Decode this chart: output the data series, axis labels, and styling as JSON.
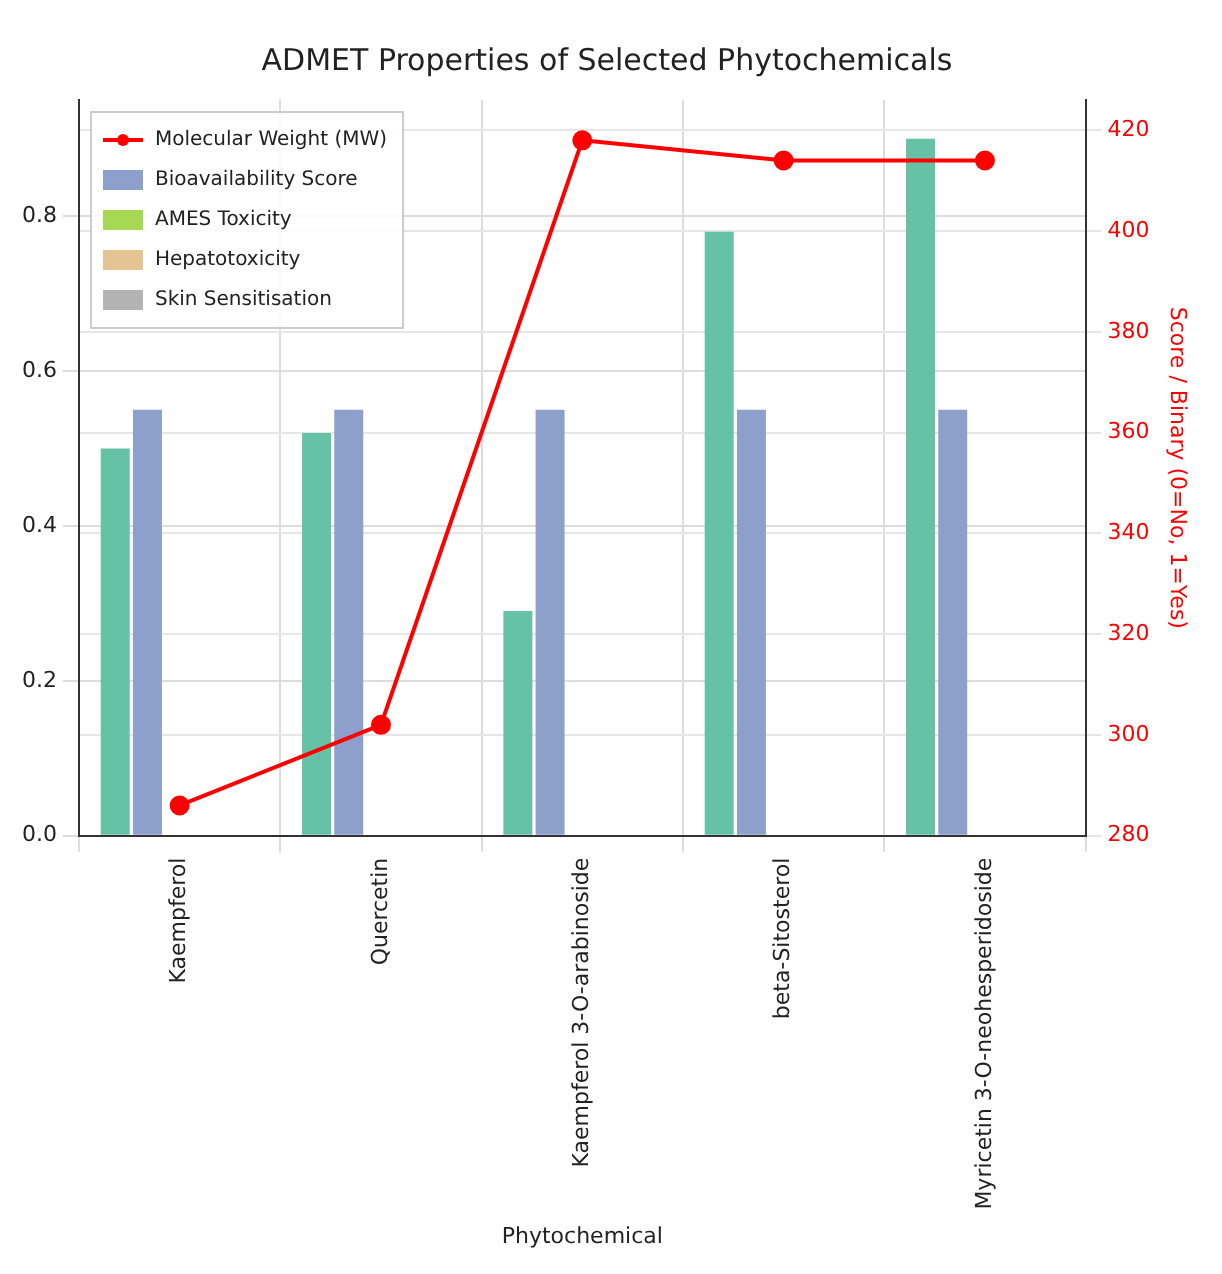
{
  "chart_data": {
    "type": "bar",
    "title": "ADMET Properties of Selected Phytochemicals",
    "xlabel": "Phytochemical",
    "y2label": "Score / Binary (0=No, 1=Yes)",
    "categories": [
      "Kaempferol",
      "Quercetin",
      "Kaempferol 3-O-arabinoside",
      "beta-Sitosterol",
      "Myricetin 3-O-neohesperidoside"
    ],
    "series": [
      {
        "name": "Molecular Weight (MW)",
        "type": "line",
        "axis": "y2",
        "color": "#ff0000",
        "values": [
          286,
          302,
          418,
          414,
          414
        ],
        "marker": "circle"
      },
      {
        "color": "#66c2a5",
        "values": [
          0.5,
          0.52,
          0.29,
          0.78,
          0.9
        ]
      },
      {
        "name": "Bioavailability Score",
        "color": "#8da0cb",
        "values": [
          0.55,
          0.55,
          0.55,
          0.55,
          0.55
        ]
      },
      {
        "name": "AMES Toxicity",
        "color": "#a6d854",
        "values": [
          0,
          0,
          0,
          0,
          0
        ]
      },
      {
        "name": "Hepatotoxicity",
        "color": "#e5c494",
        "values": [
          0,
          0,
          0,
          0,
          0
        ]
      },
      {
        "name": "Skin Sensitisation",
        "color": "#b3b3b3",
        "values": [
          0,
          0,
          0,
          0,
          0
        ]
      }
    ],
    "ylim": [
      0,
      0.95
    ],
    "yticks": [
      {
        "value": 0,
        "label": "0.0"
      },
      {
        "value": 0.2,
        "label": "0.2"
      },
      {
        "value": 0.4,
        "label": "0.4"
      },
      {
        "value": 0.6,
        "label": "0.6"
      },
      {
        "value": 0.8,
        "label": "0.8"
      }
    ],
    "y2lim": [
      280,
      426
    ],
    "y2ticks": [
      280,
      300,
      320,
      340,
      360,
      380,
      400,
      420
    ],
    "grid": true,
    "legend": "top left"
  }
}
